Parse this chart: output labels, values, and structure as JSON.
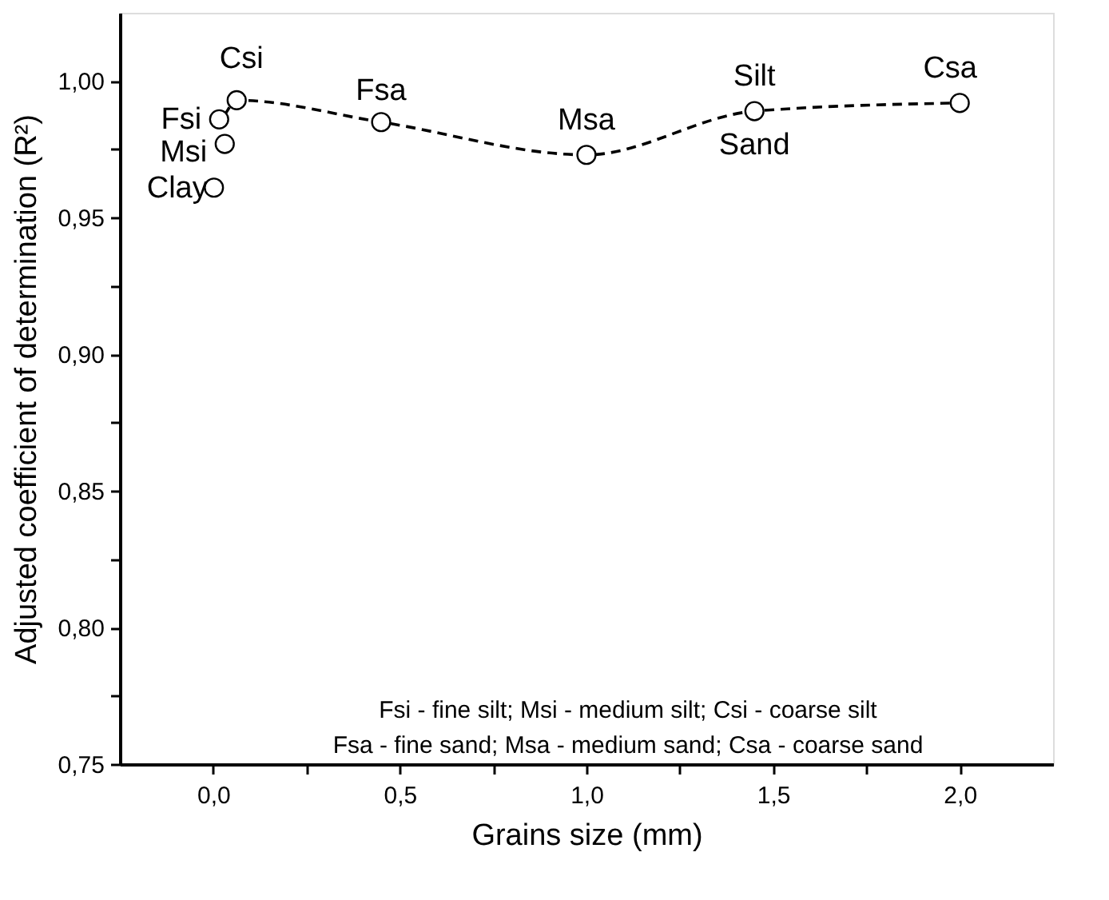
{
  "chart_data": {
    "type": "scatter",
    "xlabel": "Grains size (mm)",
    "ylabel": "Adjusted coefficient of determination (R²)",
    "series": [
      {
        "color": "#000000",
        "marker": "circle",
        "x": [
          0.002,
          0.016,
          0.031,
          0.063,
          0.45,
          1.0,
          1.45,
          2.0
        ],
        "values": [
          0.961,
          0.986,
          0.977,
          0.993,
          0.985,
          0.973,
          0.989,
          0.992
        ]
      },
      {
        "type": "line",
        "color": "#000000",
        "line_style": "dashed",
        "marker": "none",
        "x": [
          0.031,
          0.016,
          0.063,
          0.45,
          1.0,
          1.45,
          2.0
        ],
        "values": [
          0.977,
          0.986,
          0.993,
          0.985,
          0.973,
          0.989,
          0.992
        ]
      }
    ],
    "annotations": [
      {
        "text": "Clay",
        "x": 0.002,
        "y": 0.961
      },
      {
        "text": "Fsi",
        "x": 0.016,
        "y": 0.986
      },
      {
        "text": "Msi",
        "x": 0.031,
        "y": 0.977
      },
      {
        "text": "Csi",
        "x": 0.063,
        "y": 0.993
      },
      {
        "text": "Fsa",
        "x": 0.45,
        "y": 0.985
      },
      {
        "text": "Msa",
        "x": 1.0,
        "y": 0.973
      },
      {
        "text": "Silt",
        "x": 1.45,
        "y": 0.989
      },
      {
        "text": "Sand",
        "x": 1.45,
        "y": 0.989
      },
      {
        "text": "Csa",
        "x": 2.0,
        "y": 0.992
      },
      "Fsi - fine silt; Msi - medium silt; Csi - coarse silt",
      "Fsa - fine sand; Msa - medium sand; Csa - coarse sand"
    ],
    "xlim": [
      -0.25,
      2.25
    ],
    "xticks": [
      {
        "value": 0.0,
        "label": "0,0"
      },
      {
        "value": 0.25,
        "label": null
      },
      {
        "value": 0.5,
        "label": "0,5"
      },
      {
        "value": 0.75,
        "label": null
      },
      {
        "value": 1.0,
        "label": "1,0"
      },
      {
        "value": 1.25,
        "label": null
      },
      {
        "value": 1.5,
        "label": "1,5"
      },
      {
        "value": 1.75,
        "label": null
      },
      {
        "value": 2.0,
        "label": "2,0"
      }
    ],
    "ylim": [
      0.75,
      1.025
    ],
    "yticks": [
      {
        "value": 0.75,
        "label": "0,75"
      },
      {
        "value": 0.775,
        "label": null
      },
      {
        "value": 0.8,
        "label": "0,80"
      },
      {
        "value": 0.825,
        "label": null
      },
      {
        "value": 0.85,
        "label": "0,85"
      },
      {
        "value": 0.875,
        "label": null
      },
      {
        "value": 0.9,
        "label": "0,90"
      },
      {
        "value": 0.925,
        "label": null
      },
      {
        "value": 0.95,
        "label": "0,95"
      },
      {
        "value": 0.975,
        "label": null
      },
      {
        "value": 1.0,
        "label": "1,00"
      }
    ],
    "grid": false
  }
}
